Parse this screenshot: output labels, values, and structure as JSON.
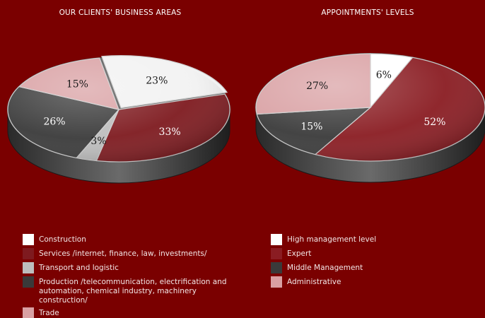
{
  "chart_data": [
    {
      "type": "pie",
      "title": "OUR CLIENTS' BUSINESS AREAS",
      "categories": [
        "Construction",
        "Services /internet, finance, law, investments/",
        "Transport and logistic",
        "Production /telecommunication, electrification and automation, chemical industry, machinery construction/",
        "Trade"
      ],
      "values": [
        23,
        33,
        3,
        26,
        15
      ],
      "labels": [
        "23%",
        "33%",
        "3%",
        "26%",
        "15%"
      ],
      "colors": [
        "#f2f2f2",
        "#7e1a1f",
        "#bdbdbd",
        "#3a3a3a",
        "#d9a0a3"
      ],
      "legend_position": "bottom"
    },
    {
      "type": "pie",
      "title": "APPOINTMENTS' LEVELS",
      "categories": [
        "High management level",
        "Expert",
        "Middle Management",
        "Administrative"
      ],
      "values": [
        6,
        52,
        15,
        27
      ],
      "labels": [
        "6%",
        "52%",
        "15%",
        "27%"
      ],
      "colors": [
        "#ffffff",
        "#8a1c22",
        "#3a3a3a",
        "#d9a0a3"
      ],
      "legend_position": "bottom"
    }
  ]
}
